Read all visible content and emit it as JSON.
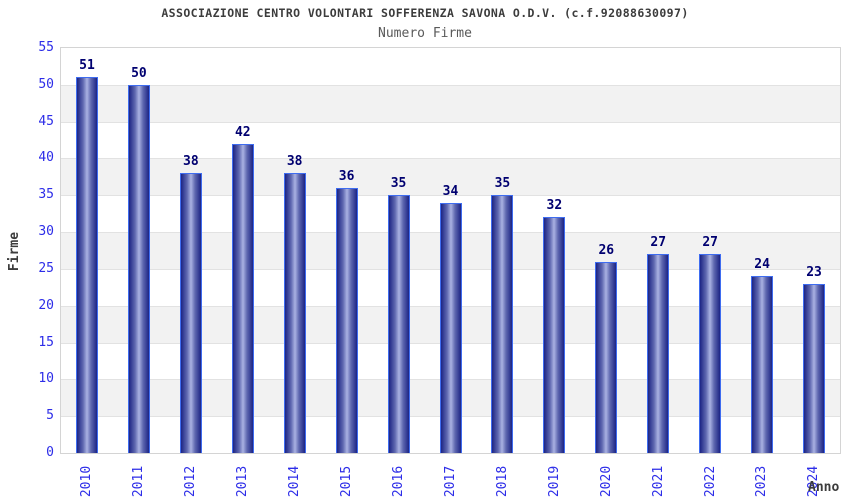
{
  "chart_data": {
    "type": "bar",
    "title": "ASSOCIAZIONE CENTRO VOLONTARI SOFFERENZA SAVONA O.D.V. (c.f.92088630097)",
    "subtitle": "Numero Firme",
    "xlabel": "Anno",
    "ylabel": "Firme",
    "categories": [
      "2010",
      "2011",
      "2012",
      "2013",
      "2014",
      "2015",
      "2016",
      "2017",
      "2018",
      "2019",
      "2020",
      "2021",
      "2022",
      "2023",
      "2024"
    ],
    "values": [
      51,
      50,
      38,
      42,
      38,
      36,
      35,
      34,
      35,
      32,
      26,
      27,
      27,
      24,
      23
    ],
    "ylim": [
      0,
      55
    ],
    "ytick_step": 5,
    "grid": true,
    "band_fill": "alternating horizontal bands, white and light gray",
    "legend": "none",
    "bar_label_position": "above bar"
  },
  "colors": {
    "background": "#ffffff",
    "title_text": "#3c3c3c",
    "subtitle_text": "#5a5a5a",
    "axis_tick_text": "#2d2de8",
    "bar_value_text": "#000070",
    "bar_border": "#3e6cf0",
    "bar_gradient_edge": "#1c2484",
    "bar_gradient_mid": "#5f68b0",
    "bar_gradient_center": "#aab2e2",
    "band_gray": "#f2f2f2",
    "grid_line": "#e2e2e2",
    "plot_border": "#d4d4d4"
  }
}
